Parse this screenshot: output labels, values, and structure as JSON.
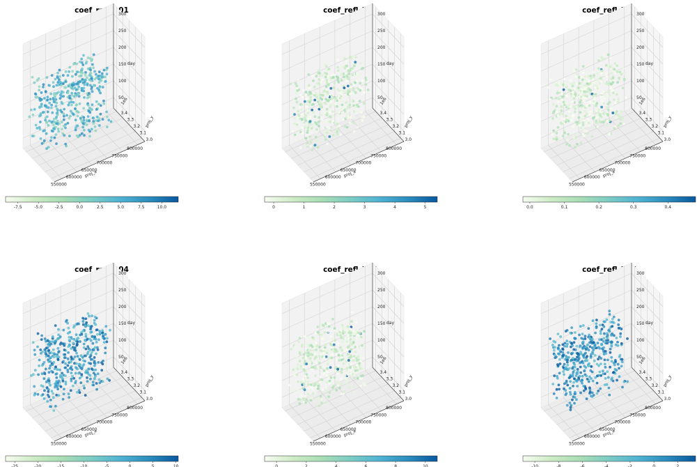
{
  "figure": {
    "colormap": "GnBu",
    "colormap_stops": [
      "#f7fcf0",
      "#ccebc5",
      "#a8ddb5",
      "#7bccc4",
      "#4eb3d3",
      "#2b8cbe",
      "#08589e"
    ]
  },
  "chart_data": [
    {
      "type": "scatter",
      "projection": "3d",
      "title": "coef_refl_b01",
      "xlabel": "proj_x",
      "ylabel": "proj_y",
      "zlabel": "day",
      "x_ticks": [
        "550000",
        "600000",
        "650000",
        "700000",
        "750000",
        "800000"
      ],
      "y_ticks": [
        "3.0",
        "3.1",
        "3.2",
        "3.3",
        "3.4"
      ],
      "y_offset": "1e6",
      "z_ticks": [
        "50",
        "100",
        "150",
        "200",
        "250",
        "300"
      ],
      "colorbar": {
        "min": -9,
        "max": 12,
        "ticks": [
          "-7.5",
          "-5.0",
          "-2.5",
          "0.0",
          "2.5",
          "5.0",
          "7.5",
          "10.0"
        ],
        "tick_values": [
          -7.5,
          -5,
          -2.5,
          0,
          2.5,
          5,
          7.5,
          10
        ]
      },
      "point_color_level": 0.62
    },
    {
      "type": "scatter",
      "projection": "3d",
      "title": "coef_refl_b02",
      "xlabel": "proj_x",
      "ylabel": "proj_y",
      "zlabel": "day",
      "x_ticks": [
        "550000",
        "600000",
        "650000",
        "700000",
        "750000",
        "800000"
      ],
      "y_ticks": [
        "3.0",
        "3.1",
        "3.2",
        "3.3",
        "3.4"
      ],
      "y_offset": "1e6",
      "z_ticks": [
        "50",
        "100",
        "150",
        "200",
        "250",
        "300"
      ],
      "colorbar": {
        "min": -0.3,
        "max": 5.4,
        "ticks": [
          "0",
          "1",
          "2",
          "3",
          "4",
          "5"
        ],
        "tick_values": [
          0,
          1,
          2,
          3,
          4,
          5
        ]
      },
      "point_color_level": 0.15
    },
    {
      "type": "scatter",
      "projection": "3d",
      "title": "coef_refl_b03",
      "xlabel": "proj_x",
      "ylabel": "proj_y",
      "zlabel": "day",
      "x_ticks": [
        "550000",
        "600000",
        "650000",
        "700000",
        "750000",
        "800000"
      ],
      "y_ticks": [
        "3.0",
        "3.1",
        "3.2",
        "3.3",
        "3.4"
      ],
      "y_offset": "1e6",
      "z_ticks": [
        "50",
        "100",
        "150",
        "200",
        "250",
        "300"
      ],
      "colorbar": {
        "min": -0.02,
        "max": 0.48,
        "ticks": [
          "0.0",
          "0.1",
          "0.2",
          "0.3",
          "0.4"
        ],
        "tick_values": [
          0,
          0.1,
          0.2,
          0.3,
          0.4
        ]
      },
      "point_color_level": 0.12
    },
    {
      "type": "scatter",
      "projection": "3d",
      "title": "coef_refl_b04",
      "xlabel": "proj_x",
      "ylabel": "proj_y",
      "zlabel": "day",
      "x_ticks": [
        "550000",
        "600000",
        "650000",
        "700000",
        "750000",
        "800000"
      ],
      "y_ticks": [
        "3.0",
        "3.1",
        "3.2",
        "3.3",
        "3.4"
      ],
      "y_offset": "1e6",
      "z_ticks": [
        "50",
        "100",
        "150",
        "200",
        "250",
        "300"
      ],
      "colorbar": {
        "min": -27,
        "max": 10.5,
        "ticks": [
          "-25",
          "-20",
          "-15",
          "-10",
          "-5",
          "0",
          "5",
          "10"
        ],
        "tick_values": [
          -25,
          -20,
          -15,
          -10,
          -5,
          0,
          5,
          10
        ]
      },
      "point_color_level": 0.78
    },
    {
      "type": "scatter",
      "projection": "3d",
      "title": "coef_refl_b05",
      "xlabel": "proj_x",
      "ylabel": "proj_y",
      "zlabel": "day",
      "x_ticks": [
        "550000",
        "600000",
        "650000",
        "700000",
        "750000",
        "800000"
      ],
      "y_ticks": [
        "3.0",
        "3.1",
        "3.2",
        "3.3",
        "3.4"
      ],
      "y_offset": "1e6",
      "z_ticks": [
        "50",
        "100",
        "150",
        "200",
        "250",
        "300"
      ],
      "colorbar": {
        "min": -0.8,
        "max": 10.8,
        "ticks": [
          "0",
          "2",
          "4",
          "6",
          "8",
          "10"
        ],
        "tick_values": [
          0,
          2,
          4,
          6,
          8,
          10
        ]
      },
      "point_color_level": 0.13
    },
    {
      "type": "scatter",
      "projection": "3d",
      "title": "coef_refl_b07",
      "xlabel": "proj_x",
      "ylabel": "proj_y",
      "zlabel": "day",
      "x_ticks": [
        "550000",
        "600000",
        "650000",
        "700000",
        "750000",
        "800000"
      ],
      "y_ticks": [
        "3.0",
        "3.1",
        "3.2",
        "3.3",
        "3.4"
      ],
      "y_offset": "1e6",
      "z_ticks": [
        "50",
        "100",
        "150",
        "200",
        "250",
        "300"
      ],
      "colorbar": {
        "min": -11,
        "max": 3.5,
        "ticks": [
          "-10",
          "-8",
          "-6",
          "-4",
          "-2",
          "0",
          "2"
        ],
        "tick_values": [
          -10,
          -8,
          -6,
          -4,
          -2,
          0,
          2
        ]
      },
      "point_color_level": 0.8
    }
  ]
}
